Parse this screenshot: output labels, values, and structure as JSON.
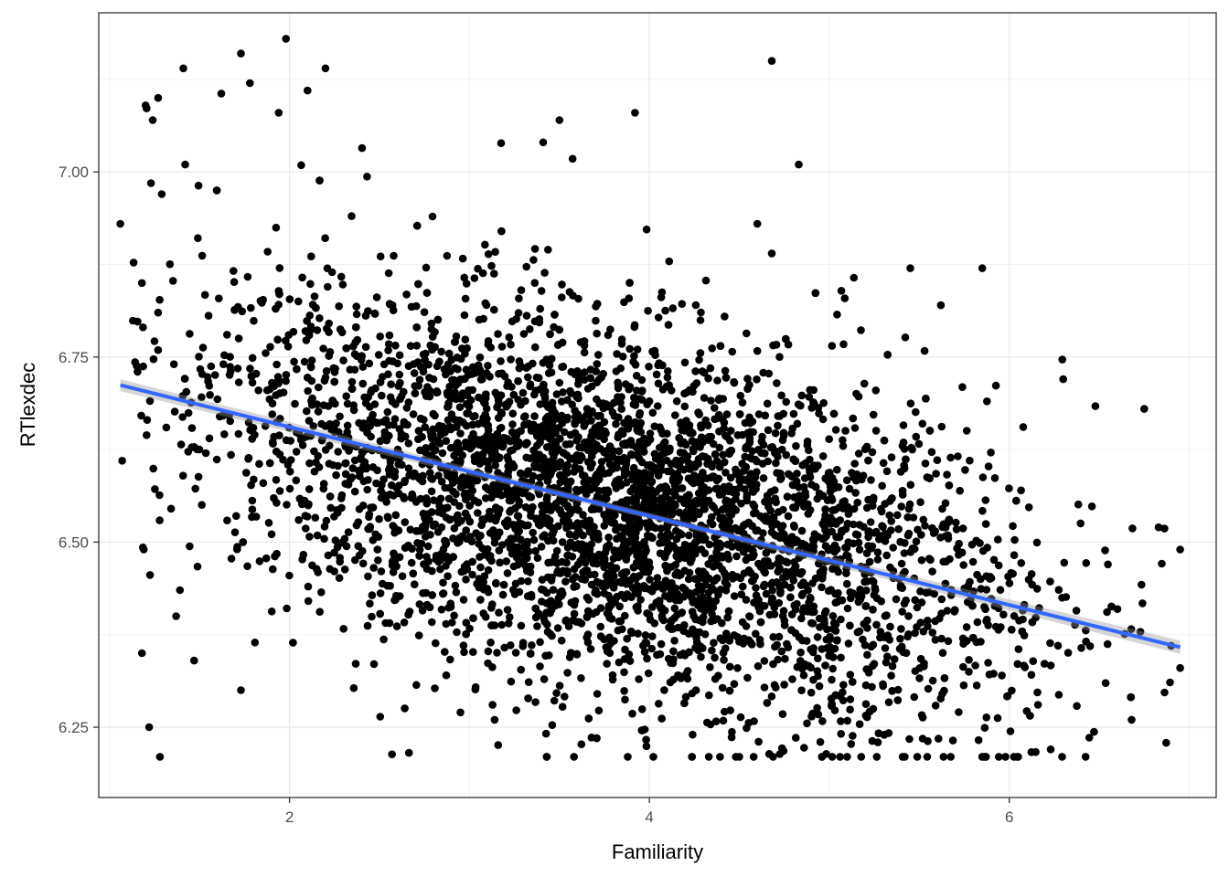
{
  "chart_data": {
    "type": "scatter",
    "title": "",
    "xlabel": "Familiarity",
    "ylabel": "RTlexdec",
    "xlim": [
      0.94,
      7.15
    ],
    "ylim": [
      6.155,
      7.215
    ],
    "x_ticks": [
      2,
      4,
      6
    ],
    "x_tick_labels": [
      "2",
      "4",
      "6"
    ],
    "x_minor_ticks": [
      1,
      3,
      5,
      7
    ],
    "y_ticks": [
      6.25,
      6.5,
      6.75,
      7.0
    ],
    "y_tick_labels": [
      "6.25",
      "6.50",
      "6.75",
      "7.00"
    ],
    "y_minor_ticks": [
      6.375,
      6.625,
      6.875,
      7.125
    ],
    "grid": true,
    "theme": "bw",
    "point_color": "#000000",
    "points_shown_individually": [
      [
        1.06,
        6.93
      ],
      [
        1.07,
        6.61
      ],
      [
        1.18,
        6.85
      ],
      [
        1.2,
        7.09
      ],
      [
        1.24,
        7.07
      ],
      [
        1.27,
        7.1
      ],
      [
        1.27,
        6.81
      ],
      [
        1.18,
        6.35
      ],
      [
        1.22,
        6.25
      ],
      [
        1.28,
        6.21
      ],
      [
        1.19,
        6.49
      ],
      [
        1.29,
        6.97
      ],
      [
        1.37,
        6.4
      ],
      [
        1.41,
        7.14
      ],
      [
        1.42,
        7.01
      ],
      [
        1.73,
        7.16
      ],
      [
        1.78,
        7.12
      ],
      [
        1.98,
        7.18
      ],
      [
        2.2,
        7.14
      ],
      [
        2.1,
        7.11
      ],
      [
        1.94,
        7.08
      ],
      [
        3.41,
        7.04
      ],
      [
        3.5,
        7.07
      ],
      [
        3.92,
        7.08
      ],
      [
        4.68,
        7.15
      ],
      [
        4.83,
        7.01
      ],
      [
        4.6,
        6.93
      ],
      [
        4.68,
        6.89
      ],
      [
        5.45,
        6.87
      ],
      [
        5.85,
        6.87
      ],
      [
        6.3,
        6.72
      ],
      [
        6.75,
        6.68
      ],
      [
        6.95,
        6.49
      ],
      [
        6.95,
        6.33
      ],
      [
        6.68,
        6.26
      ],
      [
        6.23,
        6.22
      ],
      [
        4.95,
        6.23
      ],
      [
        4.33,
        6.21
      ],
      [
        3.88,
        6.21
      ],
      [
        3.14,
        6.26
      ],
      [
        2.95,
        6.27
      ],
      [
        1.47,
        6.34
      ],
      [
        1.73,
        6.3
      ],
      [
        6.83,
        6.52
      ],
      [
        6.9,
        6.36
      ],
      [
        5.62,
        6.82
      ]
    ],
    "point_cloud": {
      "count": 4568,
      "trend": {
        "x0": 1.06,
        "y0": 6.712,
        "x1": 6.95,
        "y1": 6.358
      },
      "residual_sd": 0.12,
      "x_range": [
        1.06,
        6.95
      ],
      "x_center": 3.8,
      "x_sd": 1.1
    },
    "series": [
      {
        "type": "smooth",
        "method": "lm",
        "color": "#3366FF",
        "ribbon_color": "#999999",
        "x": [
          1.06,
          6.95
        ],
        "y": [
          6.712,
          6.358
        ],
        "ci_half_width": [
          0.008,
          0.004,
          0.009
        ]
      }
    ]
  }
}
